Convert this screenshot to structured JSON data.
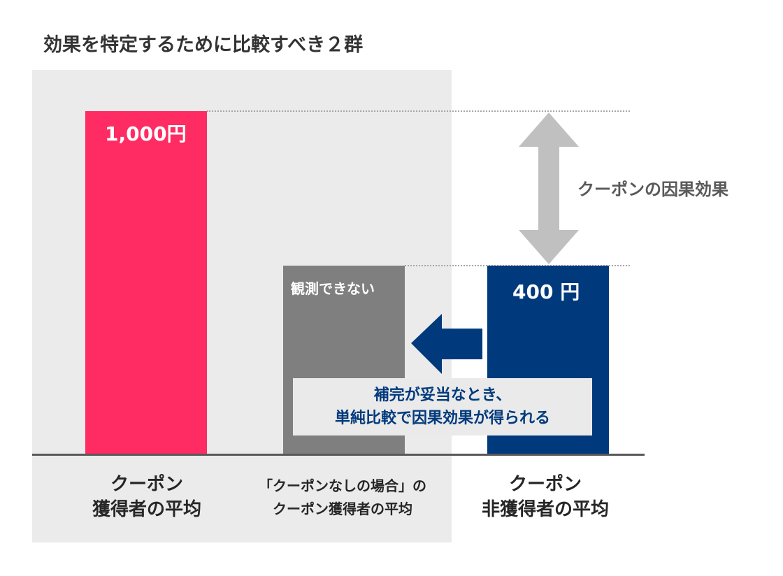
{
  "title": "効果を特定するために比較すべき２群",
  "chart_data": {
    "type": "bar",
    "categories": [
      [
        "クーポン",
        "獲得者の平均"
      ],
      [
        "「クーポンなしの場合」の",
        "クーポン獲得者の平均"
      ],
      [
        "クーポン",
        "非獲得者の平均"
      ]
    ],
    "values": [
      1000,
      400,
      400
    ],
    "bar_labels": [
      "1,000円",
      "観測できない",
      "400 円"
    ],
    "colors": [
      "#ff2b63",
      "#7f7f7f",
      "#003a7d"
    ],
    "ylim": [
      0,
      1100
    ]
  },
  "annotations": {
    "effect_label": "クーポンの因果効果",
    "callout_lines": [
      "補完が妥当なとき、",
      "単純比較で因果効果が得られる"
    ]
  },
  "colors": {
    "highlight_panel": "#ebebeb",
    "arrow_gray": "#c0c0c0",
    "arrow_blue": "#003a7d",
    "baseline": "#595959"
  }
}
